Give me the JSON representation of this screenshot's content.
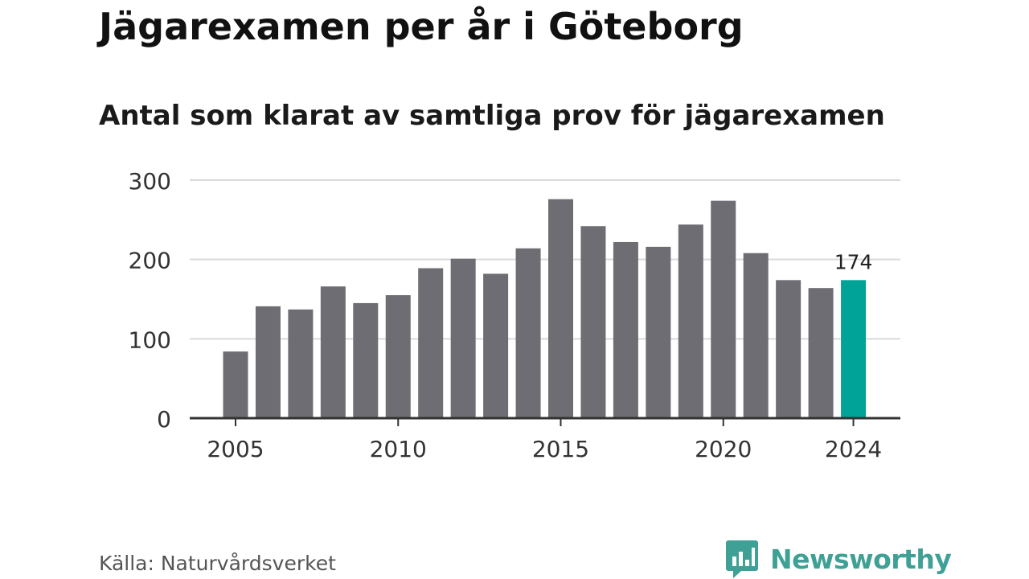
{
  "chart_data": {
    "type": "bar",
    "title": "Jägarexamen per år i Göteborg",
    "subtitle": "Antal som klarat av samtliga prov för jägarexamen",
    "categories": [
      2005,
      2006,
      2007,
      2008,
      2009,
      2010,
      2011,
      2012,
      2013,
      2014,
      2015,
      2016,
      2017,
      2018,
      2019,
      2020,
      2021,
      2022,
      2023,
      2024
    ],
    "values": [
      84,
      141,
      137,
      166,
      145,
      155,
      189,
      201,
      182,
      214,
      276,
      242,
      222,
      216,
      244,
      274,
      208,
      174,
      164,
      174
    ],
    "x_tick_labels": [
      "2005",
      "2010",
      "2015",
      "2020",
      "2024"
    ],
    "y_ticks": [
      0,
      100,
      200,
      300
    ],
    "ylim": [
      0,
      300
    ],
    "grid": true,
    "highlight": {
      "category": 2024,
      "label": "174"
    },
    "colors": {
      "bar": "#6e6d73",
      "highlight": "#00a398",
      "grid": "#d9d9d9",
      "axis": "#333333"
    }
  },
  "source": "Källa: Naturvårdsverket",
  "brand": {
    "name": "Newsworthy",
    "icon": "newsworthy-logo-icon",
    "color": "#3fa195"
  }
}
